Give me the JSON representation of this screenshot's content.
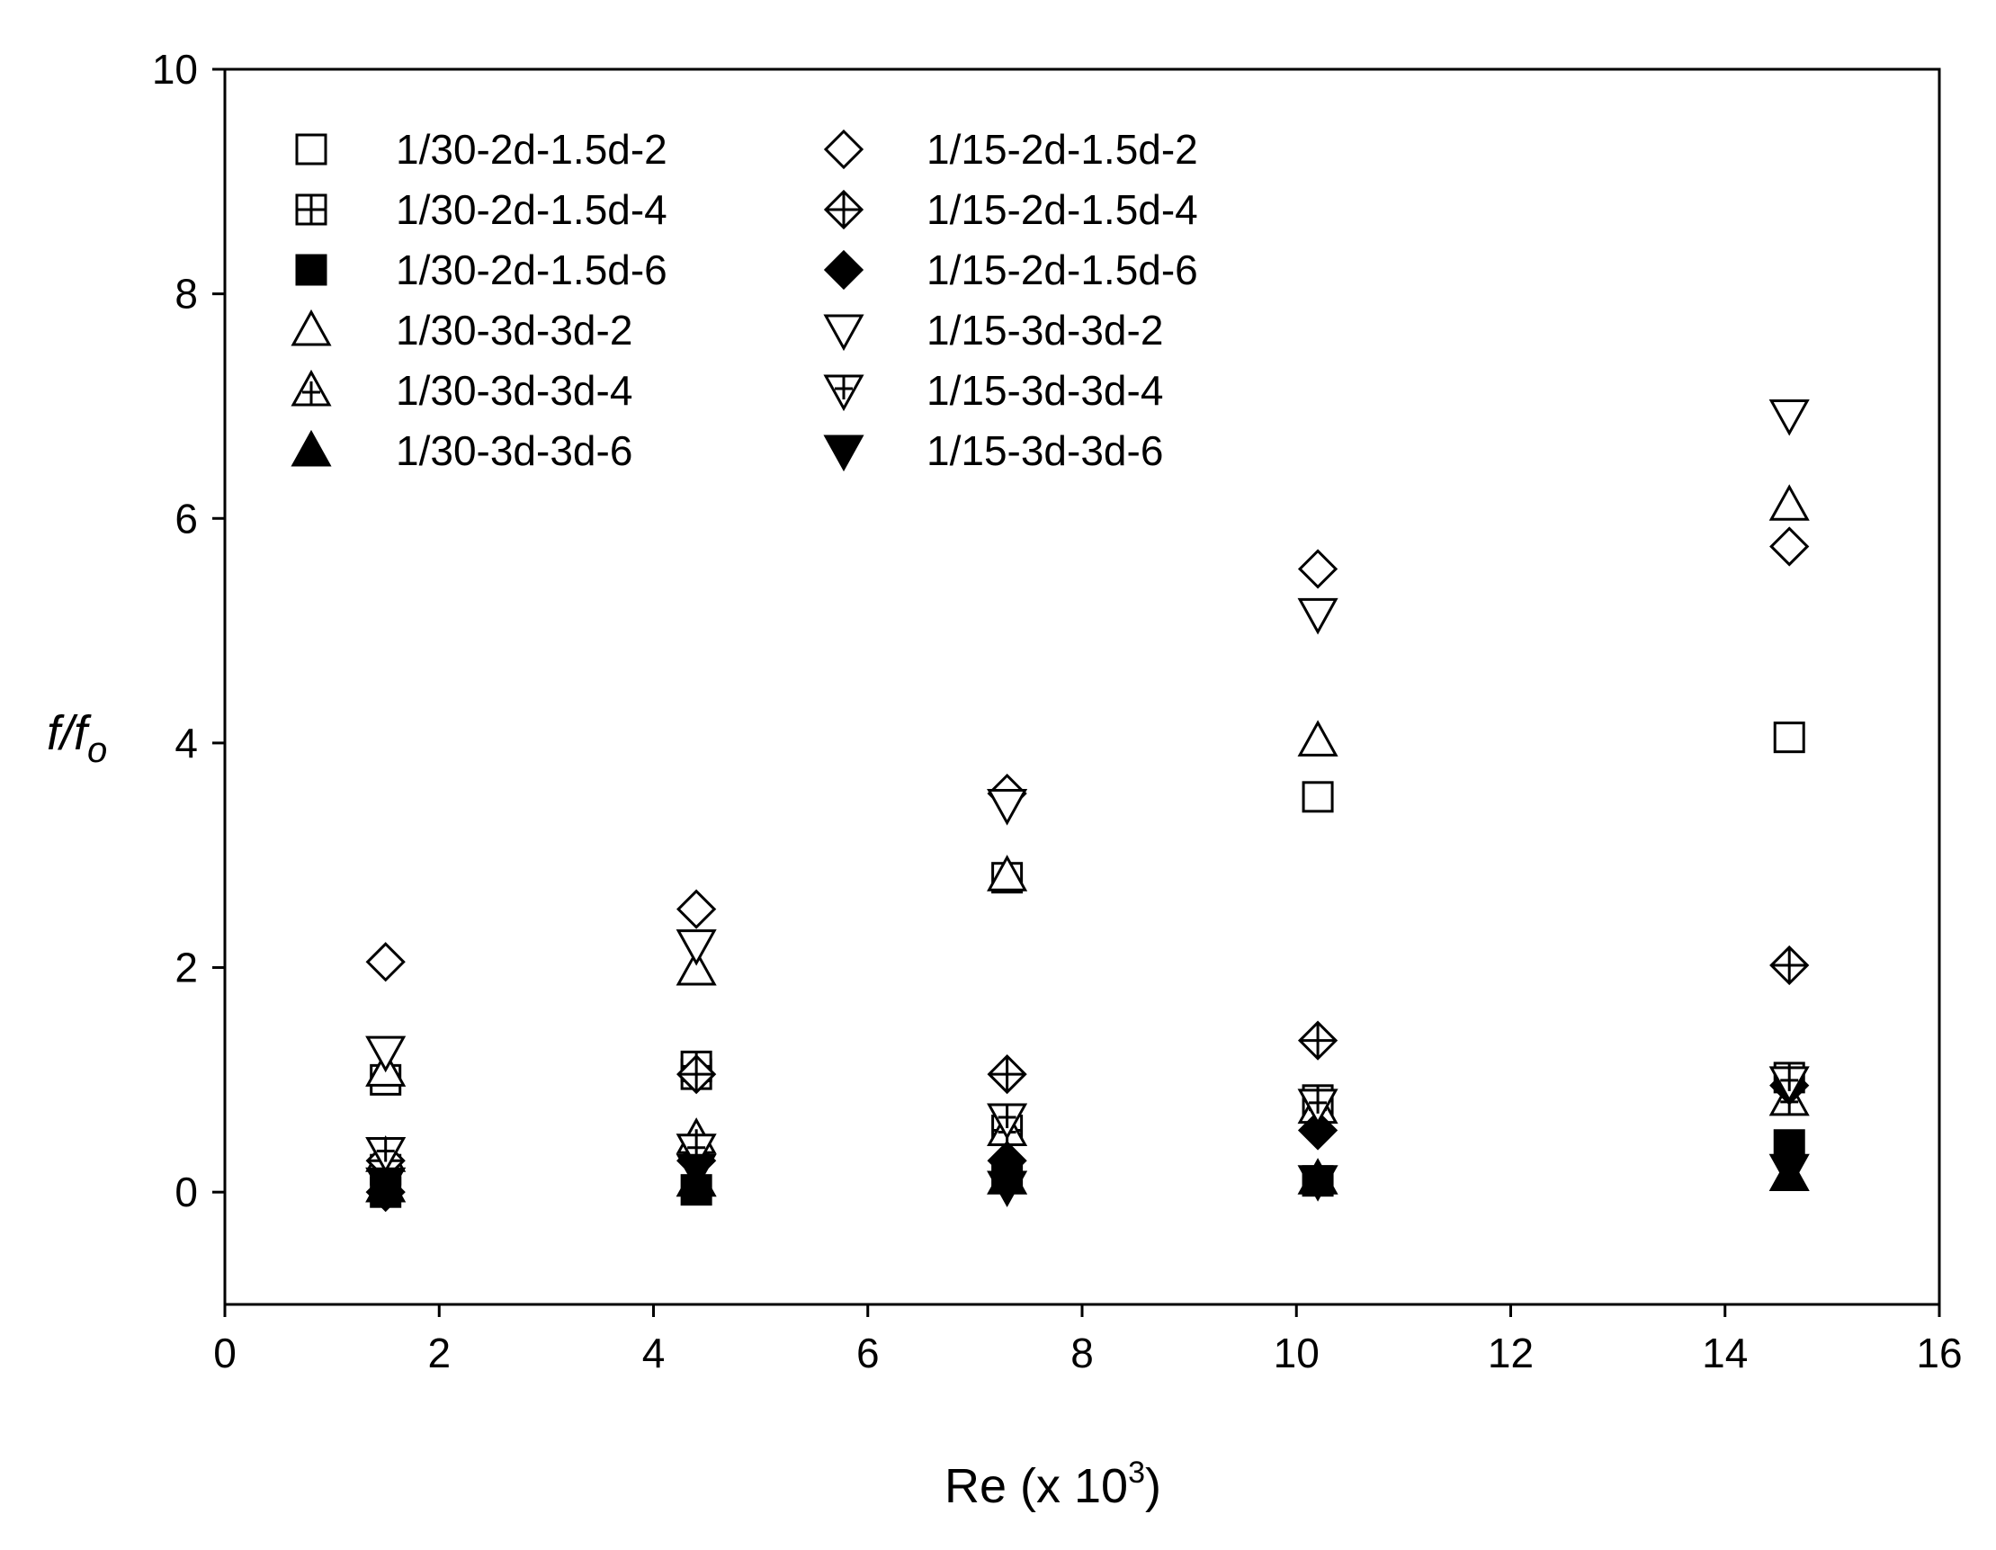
{
  "chart_data": {
    "type": "scatter",
    "xlabel": "Re (x 10",
    "xlabel_sup": "3",
    "xlabel_end": ")",
    "ylabel_main": "f/f",
    "ylabel_sub": "o",
    "xlim": [
      0,
      16
    ],
    "ylim": [
      -1,
      10
    ],
    "x_ticks": [
      0,
      2,
      4,
      6,
      8,
      10,
      12,
      14,
      16
    ],
    "y_ticks": [
      0,
      2,
      4,
      6,
      8,
      10
    ],
    "grid": false,
    "legend_position": "top-left",
    "series": [
      {
        "name": "1/30-2d-1.5d-2",
        "marker": "square-open",
        "points": [
          [
            1.5,
            1.0
          ],
          [
            4.4,
            1.05
          ],
          [
            7.3,
            2.8
          ],
          [
            10.2,
            3.52
          ],
          [
            14.6,
            4.05
          ]
        ]
      },
      {
        "name": "1/30-2d-1.5d-4",
        "marker": "square-cross",
        "points": [
          [
            1.5,
            0.2
          ],
          [
            4.4,
            1.12
          ],
          [
            7.3,
            0.55
          ],
          [
            10.2,
            0.82
          ],
          [
            14.6,
            1.02
          ]
        ]
      },
      {
        "name": "1/30-2d-1.5d-6",
        "marker": "square-filled",
        "points": [
          [
            1.5,
            0.0
          ],
          [
            4.4,
            0.02
          ],
          [
            7.3,
            0.15
          ],
          [
            10.2,
            0.1
          ],
          [
            14.6,
            0.42
          ]
        ]
      },
      {
        "name": "1/30-3d-3d-2",
        "marker": "triangle-up-open",
        "points": [
          [
            1.5,
            1.08
          ],
          [
            4.4,
            1.98
          ],
          [
            7.3,
            2.82
          ],
          [
            10.2,
            4.02
          ],
          [
            14.6,
            6.12
          ]
        ]
      },
      {
        "name": "1/30-3d-3d-4",
        "marker": "triangle-up-hatched",
        "points": [
          [
            1.5,
            0.32
          ],
          [
            4.4,
            0.48
          ],
          [
            7.3,
            0.55
          ],
          [
            10.2,
            0.75
          ],
          [
            14.6,
            0.82
          ]
        ]
      },
      {
        "name": "1/30-3d-3d-6",
        "marker": "triangle-up-filled",
        "points": [
          [
            1.5,
            0.05
          ],
          [
            4.4,
            0.1
          ],
          [
            7.3,
            0.12
          ],
          [
            10.2,
            0.12
          ],
          [
            14.6,
            0.15
          ]
        ]
      },
      {
        "name": "1/15-2d-1.5d-2",
        "marker": "diamond-open",
        "points": [
          [
            1.5,
            2.05
          ],
          [
            4.4,
            2.52
          ],
          [
            7.3,
            3.55
          ],
          [
            10.2,
            5.55
          ],
          [
            14.6,
            5.75
          ]
        ]
      },
      {
        "name": "1/15-2d-1.5d-4",
        "marker": "diamond-cross",
        "points": [
          [
            1.5,
            0.28
          ],
          [
            4.4,
            1.05
          ],
          [
            7.3,
            1.05
          ],
          [
            10.2,
            1.35
          ],
          [
            14.6,
            2.02
          ]
        ]
      },
      {
        "name": "1/15-2d-1.5d-6",
        "marker": "diamond-filled",
        "points": [
          [
            1.5,
            0.0
          ],
          [
            4.4,
            0.28
          ],
          [
            7.3,
            0.28
          ],
          [
            10.2,
            0.55
          ],
          [
            14.6,
            0.95
          ]
        ]
      },
      {
        "name": "1/15-3d-3d-2",
        "marker": "triangle-down-open",
        "points": [
          [
            1.5,
            1.25
          ],
          [
            4.4,
            2.2
          ],
          [
            7.3,
            3.45
          ],
          [
            10.2,
            5.15
          ],
          [
            14.6,
            6.92
          ]
        ]
      },
      {
        "name": "1/15-3d-3d-4",
        "marker": "triangle-down-hatched",
        "points": [
          [
            1.5,
            0.35
          ],
          [
            4.4,
            0.38
          ],
          [
            7.3,
            0.65
          ],
          [
            10.2,
            0.78
          ],
          [
            14.6,
            0.98
          ]
        ]
      },
      {
        "name": "1/15-3d-3d-6",
        "marker": "triangle-down-filled",
        "points": [
          [
            1.5,
            0.08
          ],
          [
            4.4,
            0.2
          ],
          [
            7.3,
            0.05
          ],
          [
            10.2,
            0.1
          ],
          [
            14.6,
            0.2
          ]
        ]
      }
    ]
  }
}
